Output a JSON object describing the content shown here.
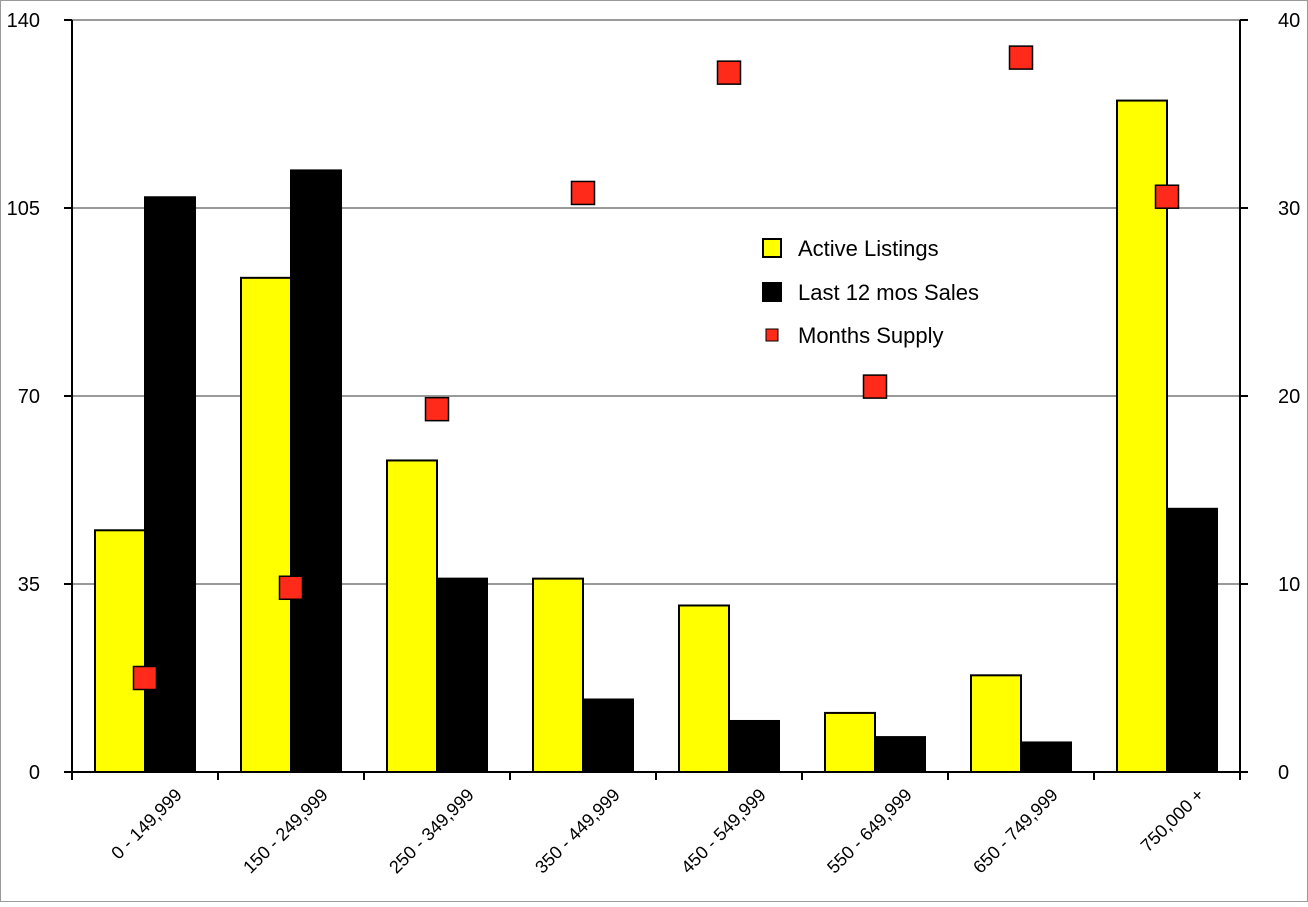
{
  "chart_data": {
    "type": "bar",
    "categories": [
      "0 - 149,999",
      "150 - 249,999",
      "250 - 349,999",
      "350 - 449,999",
      "450 - 549,999",
      "550 - 649,999",
      "650 - 749,999",
      "750,000 +"
    ],
    "series": [
      {
        "name": "Active Listings",
        "type": "bar",
        "axis": "left",
        "color": "#ffff00",
        "values": [
          45,
          92,
          58,
          36,
          31,
          11,
          18,
          125
        ]
      },
      {
        "name": "Last 12 mos Sales",
        "type": "bar",
        "axis": "left",
        "color": "#000000",
        "values": [
          107,
          112,
          36,
          13.5,
          9.5,
          6.5,
          5.5,
          49
        ]
      },
      {
        "name": "Months Supply",
        "type": "scatter",
        "axis": "right",
        "color": "#ff2a1a",
        "values": [
          5,
          9.8,
          19.3,
          30.8,
          37.2,
          20.5,
          38,
          30.6
        ]
      }
    ],
    "y_left": {
      "min": 0,
      "max": 140,
      "ticks": [
        0,
        35,
        70,
        105,
        140
      ]
    },
    "y_right": {
      "min": 0,
      "max": 40,
      "ticks": [
        0,
        10,
        20,
        30,
        40
      ]
    },
    "grid": true,
    "legend_position": "center-right"
  }
}
